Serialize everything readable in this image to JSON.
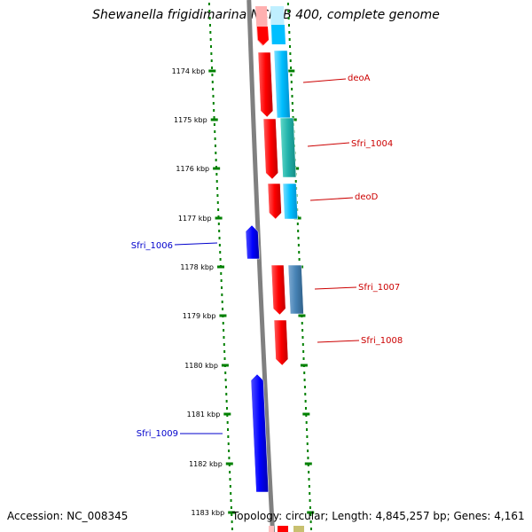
{
  "title": "Shewanella frigidimarina NCIMB 400, complete genome",
  "accession": "Accession: NC_008345",
  "summary": "Topology: circular; Length: 4,845,257 bp; Genes: 4,161",
  "colors": {
    "backbone": "#808080",
    "ruler": "#008000",
    "red_gene": "#ff0000",
    "blue_gene": "#0000ff",
    "sky_feature": "#00bfff",
    "teal_feature": "#20b2aa",
    "steel_feature": "#4682b4",
    "label_red": "#cc0000",
    "label_blue": "#0000cc"
  },
  "ruler_labels": [
    "1174 kbp",
    "1175 kbp",
    "1176 kbp",
    "1177 kbp",
    "1178 kbp",
    "1179 kbp",
    "1180 kbp",
    "1181 kbp",
    "1182 kbp",
    "1183 kbp"
  ],
  "gene_labels": [
    {
      "name": "deoA",
      "strand": "plus"
    },
    {
      "name": "Sfri_1004",
      "strand": "plus"
    },
    {
      "name": "deoD",
      "strand": "plus"
    },
    {
      "name": "Sfri_1006",
      "strand": "minus"
    },
    {
      "name": "Sfri_1007",
      "strand": "plus"
    },
    {
      "name": "Sfri_1008",
      "strand": "plus"
    },
    {
      "name": "Sfri_1009",
      "strand": "minus"
    }
  ]
}
